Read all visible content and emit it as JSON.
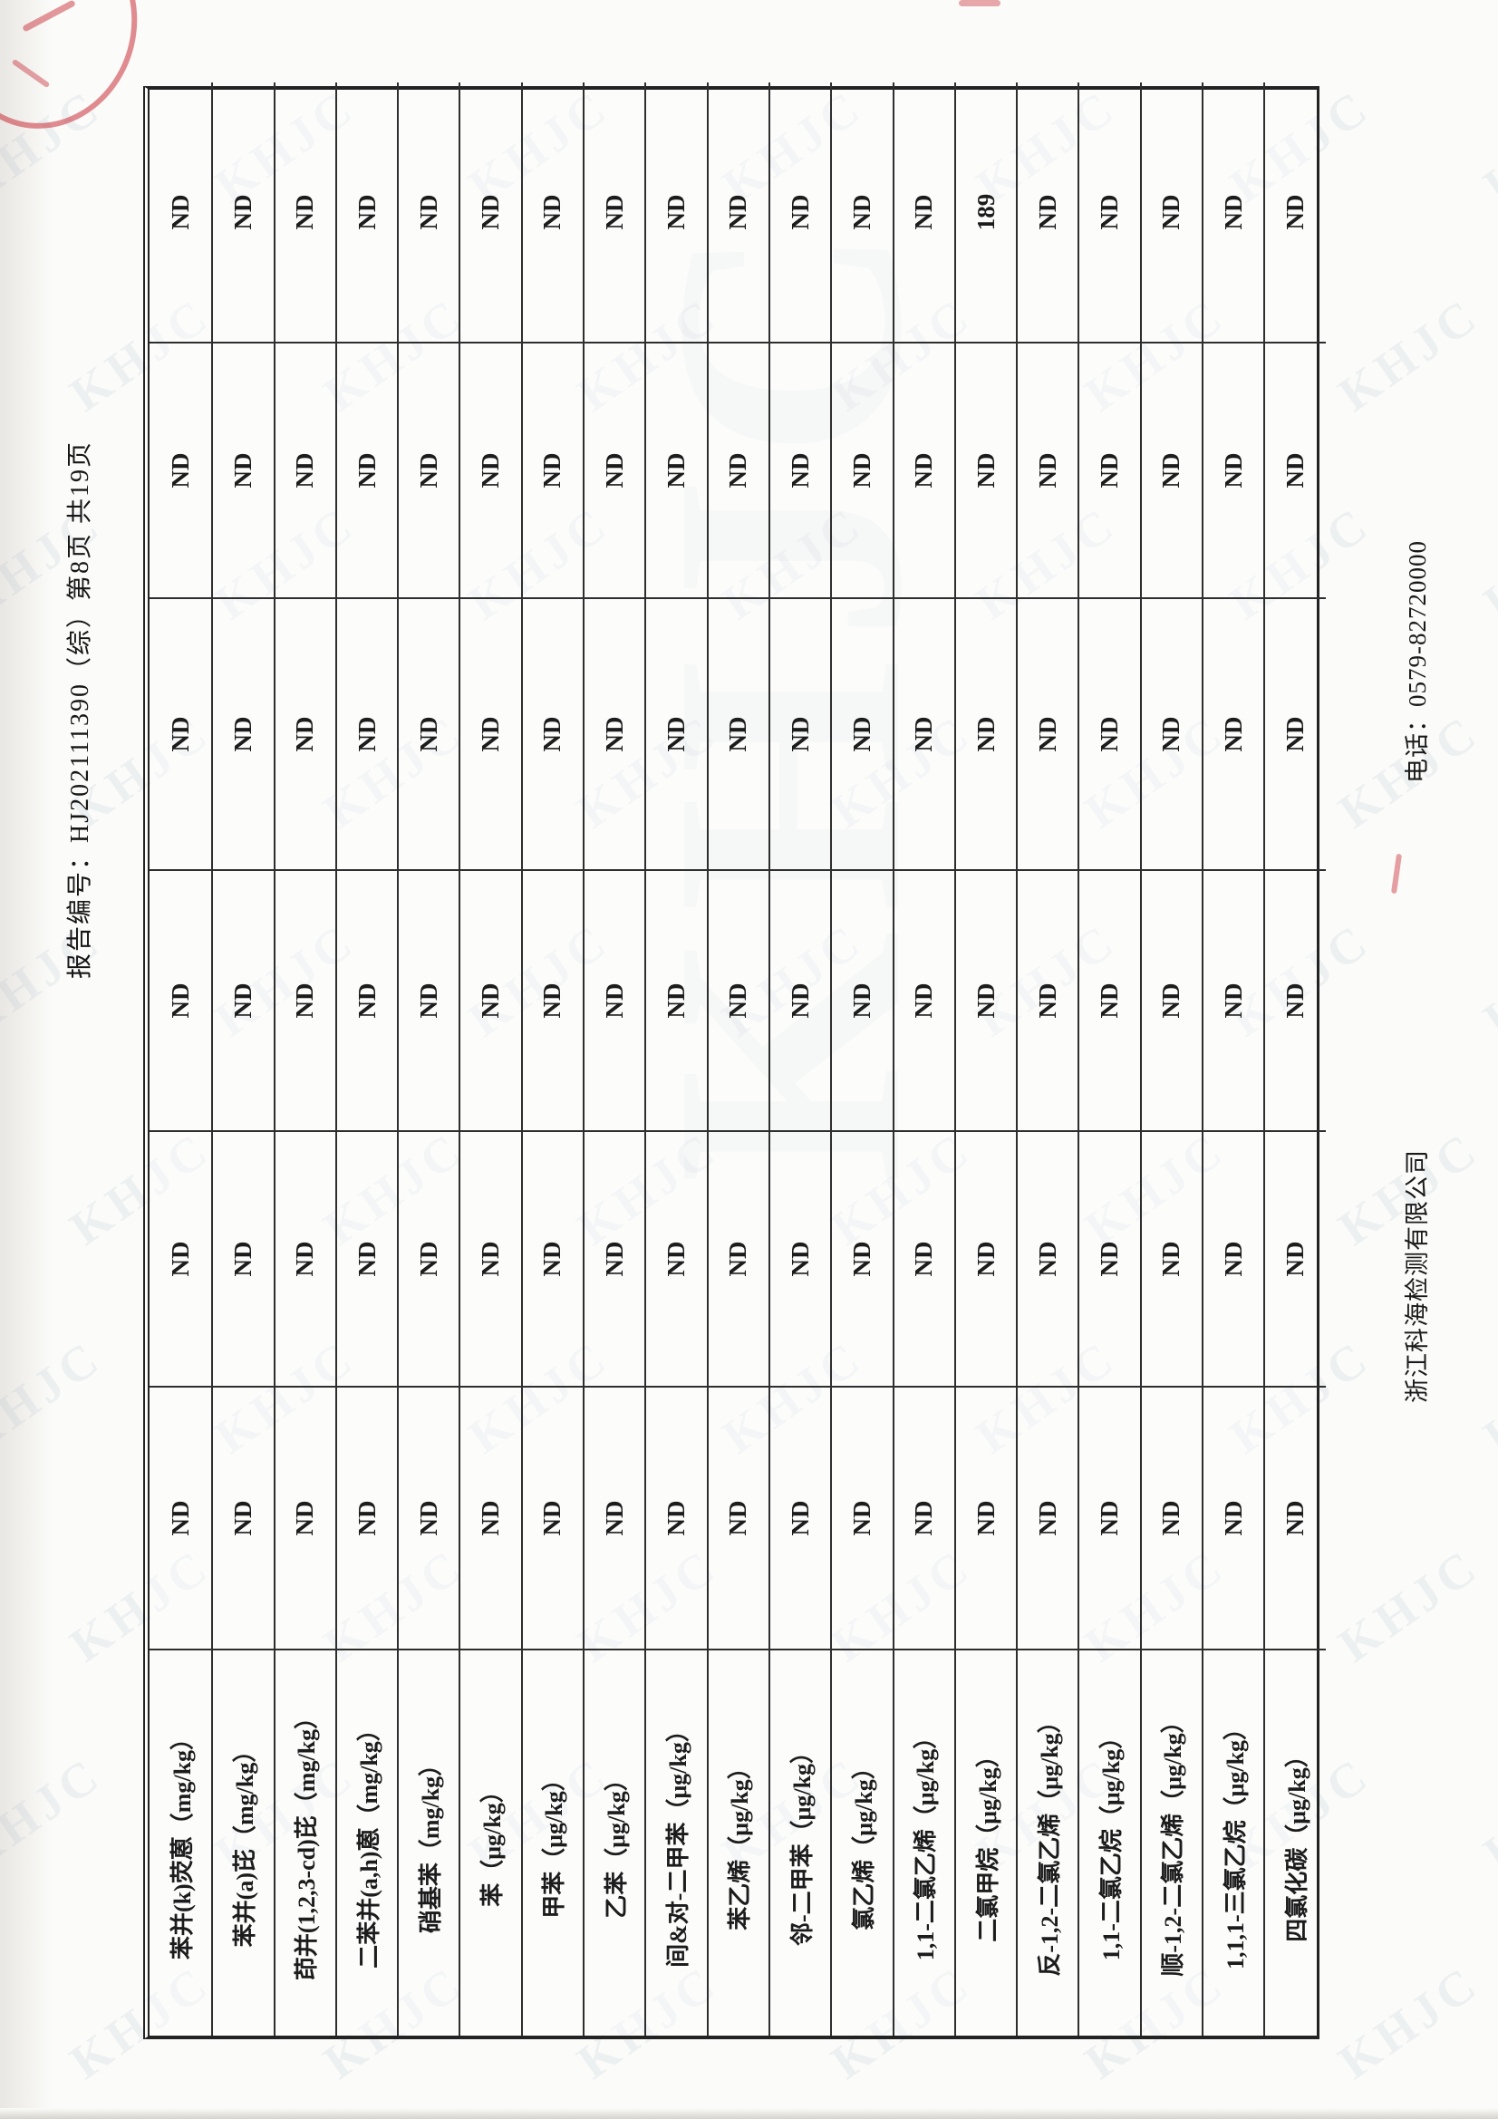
{
  "page": {
    "header": "报告编号：HJ202111390（综）第8页 共19页",
    "footer_company": "浙江科海检测有限公司",
    "footer_phone": "电话：0579-82720000",
    "watermark": "KHJC"
  },
  "table": {
    "note": "continuation results table; leftmost column = analyte (unit), then 6 sample result columns",
    "rows": [
      {
        "name": "苯并(k)荧蒽（mg/kg）",
        "values": [
          "ND",
          "ND",
          "ND",
          "ND",
          "ND",
          "ND"
        ]
      },
      {
        "name": "苯并(a)芘（mg/kg）",
        "values": [
          "ND",
          "ND",
          "ND",
          "ND",
          "ND",
          "ND"
        ]
      },
      {
        "name": "茚并(1,2,3-cd)芘（mg/kg）",
        "values": [
          "ND",
          "ND",
          "ND",
          "ND",
          "ND",
          "ND"
        ]
      },
      {
        "name": "二苯并(a,h)蒽（mg/kg）",
        "values": [
          "ND",
          "ND",
          "ND",
          "ND",
          "ND",
          "ND"
        ]
      },
      {
        "name": "硝基苯（mg/kg）",
        "values": [
          "ND",
          "ND",
          "ND",
          "ND",
          "ND",
          "ND"
        ]
      },
      {
        "name": "苯（μg/kg）",
        "values": [
          "ND",
          "ND",
          "ND",
          "ND",
          "ND",
          "ND"
        ]
      },
      {
        "name": "甲苯（μg/kg）",
        "values": [
          "ND",
          "ND",
          "ND",
          "ND",
          "ND",
          "ND"
        ]
      },
      {
        "name": "乙苯（μg/kg）",
        "values": [
          "ND",
          "ND",
          "ND",
          "ND",
          "ND",
          "ND"
        ]
      },
      {
        "name": "间&对-二甲苯（μg/kg）",
        "values": [
          "ND",
          "ND",
          "ND",
          "ND",
          "ND",
          "ND"
        ]
      },
      {
        "name": "苯乙烯（μg/kg）",
        "values": [
          "ND",
          "ND",
          "ND",
          "ND",
          "ND",
          "ND"
        ]
      },
      {
        "name": "邻-二甲苯（μg/kg）",
        "values": [
          "ND",
          "ND",
          "ND",
          "ND",
          "ND",
          "ND"
        ]
      },
      {
        "name": "氯乙烯（μg/kg）",
        "values": [
          "ND",
          "ND",
          "ND",
          "ND",
          "ND",
          "ND"
        ]
      },
      {
        "name": "1,1-二氯乙烯（μg/kg）",
        "values": [
          "ND",
          "ND",
          "ND",
          "ND",
          "ND",
          "ND"
        ]
      },
      {
        "name": "二氯甲烷（μg/kg）",
        "values": [
          "ND",
          "ND",
          "ND",
          "ND",
          "ND",
          "189"
        ]
      },
      {
        "name": "反-1,2-二氯乙烯（μg/kg）",
        "values": [
          "ND",
          "ND",
          "ND",
          "ND",
          "ND",
          "ND"
        ]
      },
      {
        "name": "1,1-二氯乙烷（μg/kg）",
        "values": [
          "ND",
          "ND",
          "ND",
          "ND",
          "ND",
          "ND"
        ]
      },
      {
        "name": "顺-1,2-二氯乙烯（μg/kg）",
        "values": [
          "ND",
          "ND",
          "ND",
          "ND",
          "ND",
          "ND"
        ]
      },
      {
        "name": "1,1,1-三氯乙烷（μg/kg）",
        "values": [
          "ND",
          "ND",
          "ND",
          "ND",
          "ND",
          "ND"
        ]
      },
      {
        "name": "四氯化碳（μg/kg）",
        "values": [
          "ND",
          "ND",
          "ND",
          "ND",
          "ND",
          "ND"
        ]
      }
    ]
  }
}
